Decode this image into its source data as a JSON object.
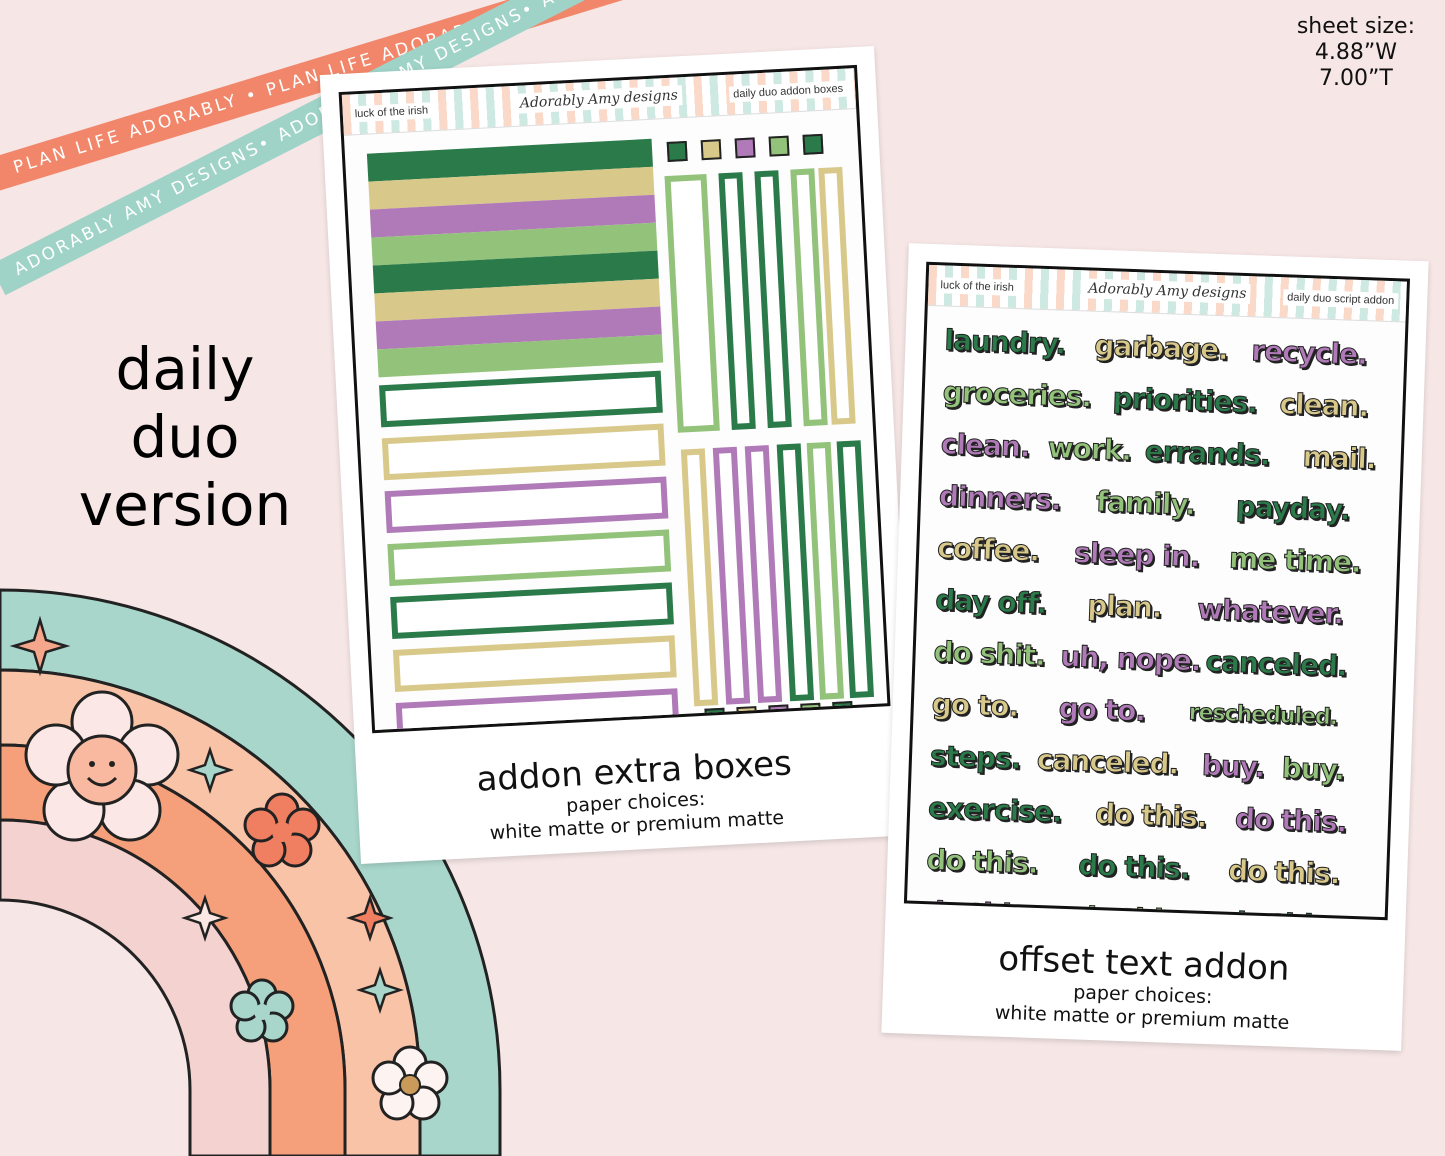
{
  "ribbons": {
    "coral_text": "PLAN LIFE ADORABLY • PLAN LIFE ADORABLY • PLAN LIFE ADORABLY •",
    "mint_text": "ADORABLY AMY DESIGNS• ADORABLY AMY DESIGNS• ADORABLY AMY DESIGNS•"
  },
  "sheet_size": {
    "label": "sheet size:",
    "width": "4.88”W",
    "height": "7.00”T"
  },
  "title": {
    "line1": "daily",
    "line2": "duo",
    "line3": "version"
  },
  "left_card": {
    "header_left": "luck of the irish",
    "header_logo": "Adorably Amy designs",
    "header_right": "daily duo addon boxes",
    "caption_title": "addon extra boxes",
    "caption_sub1": "paper choices:",
    "caption_sub2": "white matte or premium matte"
  },
  "right_card": {
    "header_left": "luck of the irish",
    "header_logo": "Adorably Amy designs",
    "header_right": "daily duo script addon",
    "caption_title": "offset text addon",
    "caption_sub1": "paper choices:",
    "caption_sub2": "white matte or premium matte",
    "words": [
      "laundry.",
      "garbage.",
      "recycle.",
      "groceries.",
      "priorities.",
      "clean.",
      "clean.",
      "work.",
      "errands.",
      "mail.",
      "dinners.",
      "family.",
      "payday.",
      "coffee.",
      "sleep in.",
      "me time.",
      "day off.",
      "plan.",
      "whatever.",
      "do shit.",
      "uh, nope.",
      "canceled.",
      "go to.",
      "go to.",
      "rescheduled.",
      "steps.",
      "canceled.",
      "buy.",
      "buy.",
      "exercise.",
      "do this.",
      "do this.",
      "do this.",
      "do this.",
      "do this.",
      "do this.",
      "do this.",
      "do this."
    ]
  },
  "colors": {
    "dark_green": "#2a7a4a",
    "khaki": "#d8c98a",
    "purple": "#b07ab8",
    "light_green": "#93c27a",
    "coral": "#f2866a",
    "mint": "#9fd3c7",
    "background": "#f6e6e6"
  }
}
